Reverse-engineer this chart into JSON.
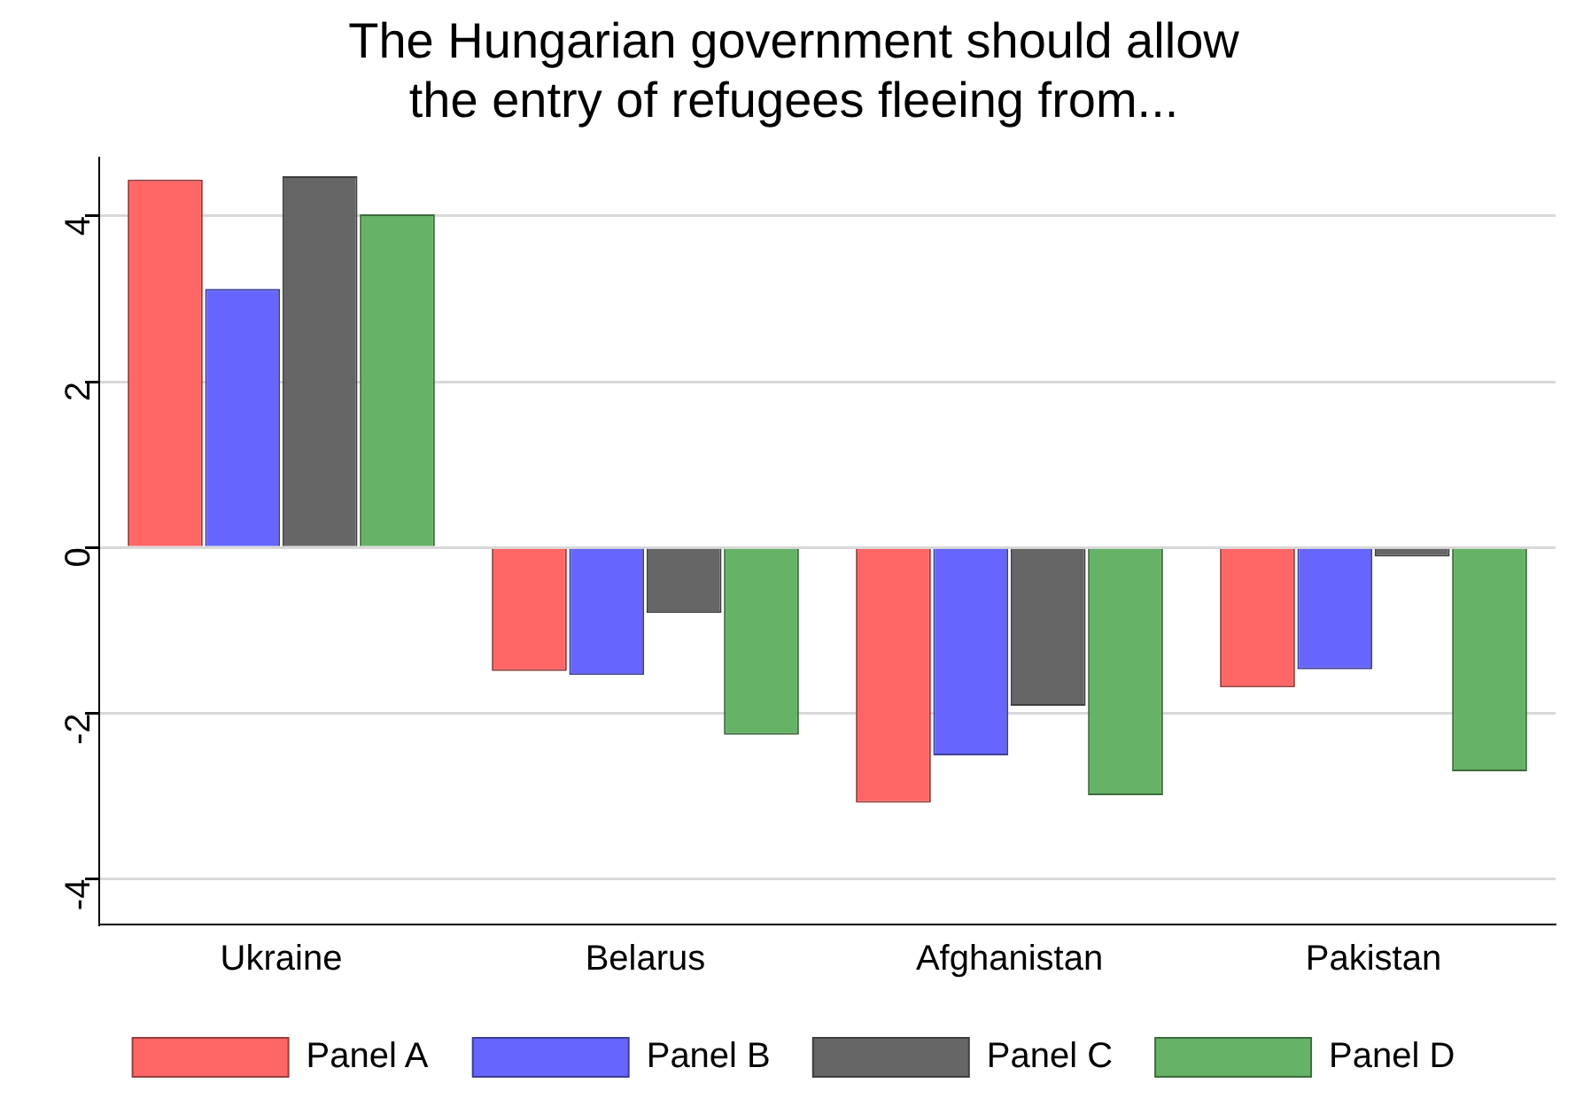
{
  "chart_data": {
    "type": "bar",
    "title": "The Hungarian government should allow\nthe entry of refugees fleeing from...",
    "categories": [
      "Ukraine",
      "Belarus",
      "Afghanistan",
      "Pakistan"
    ],
    "series": [
      {
        "name": "Panel A",
        "color": "#ff6666",
        "values": [
          4.44,
          -1.49,
          -3.08,
          -1.69
        ]
      },
      {
        "name": "Panel B",
        "color": "#6666ff",
        "values": [
          3.12,
          -1.54,
          -2.51,
          -1.47
        ]
      },
      {
        "name": "Panel C",
        "color": "#666666",
        "values": [
          4.48,
          -0.79,
          -1.91,
          -0.11
        ]
      },
      {
        "name": "Panel D",
        "color": "#66b266",
        "values": [
          4.02,
          -2.26,
          -2.99,
          -2.7
        ]
      }
    ],
    "ylim": [
      -4.55,
      4.7
    ],
    "yticks": [
      -4,
      -2,
      0,
      2,
      4
    ],
    "grid": "y",
    "legend": "bottom"
  }
}
